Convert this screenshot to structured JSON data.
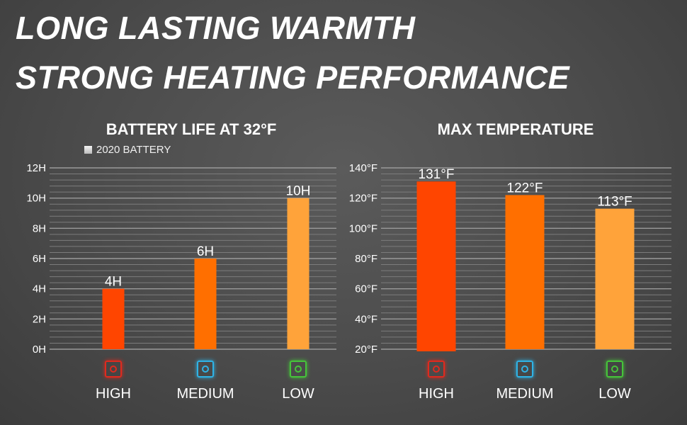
{
  "headline": {
    "line1": "LONG LASTING WARMTH",
    "line2": "STRONG HEATING PERFORMANCE"
  },
  "legend": {
    "label": "2020 BATTERY"
  },
  "modes": [
    {
      "label": "HIGH",
      "icon": "heat-high-icon",
      "color": "#e02a1e"
    },
    {
      "label": "MEDIUM",
      "icon": "heat-medium-icon",
      "color": "#2fb3e6"
    },
    {
      "label": "LOW",
      "icon": "heat-low-icon",
      "color": "#46c43a"
    }
  ],
  "chart_data": [
    {
      "type": "bar",
      "title": "BATTERY LIFE AT 32°F",
      "categories": [
        "HIGH",
        "MEDIUM",
        "LOW"
      ],
      "values": [
        4,
        6,
        10
      ],
      "value_labels": [
        "4H",
        "6H",
        "10H"
      ],
      "bar_colors": [
        "#ff4500",
        "#ff6f00",
        "#ffa33a"
      ],
      "yticks": [
        0,
        2,
        4,
        6,
        8,
        10,
        12
      ],
      "ytick_labels": [
        "0H",
        "2H",
        "4H",
        "6H",
        "8H",
        "10H",
        "12H"
      ],
      "ylim": [
        0,
        12
      ],
      "grid": true
    },
    {
      "type": "bar",
      "title": "MAX TEMPERATURE",
      "categories": [
        "HIGH",
        "MEDIUM",
        "LOW"
      ],
      "values": [
        131,
        122,
        113
      ],
      "value_labels": [
        "131°F",
        "122°F",
        "113°F"
      ],
      "bar_colors": [
        "#ff4500",
        "#ff6f00",
        "#ffa33a"
      ],
      "yticks": [
        20,
        40,
        60,
        80,
        100,
        120,
        140
      ],
      "ytick_labels": [
        "20°F",
        "40°F",
        "60°F",
        "80°F",
        "100°F",
        "120°F",
        "140°F"
      ],
      "ylim": [
        20,
        140
      ],
      "grid": true
    }
  ]
}
